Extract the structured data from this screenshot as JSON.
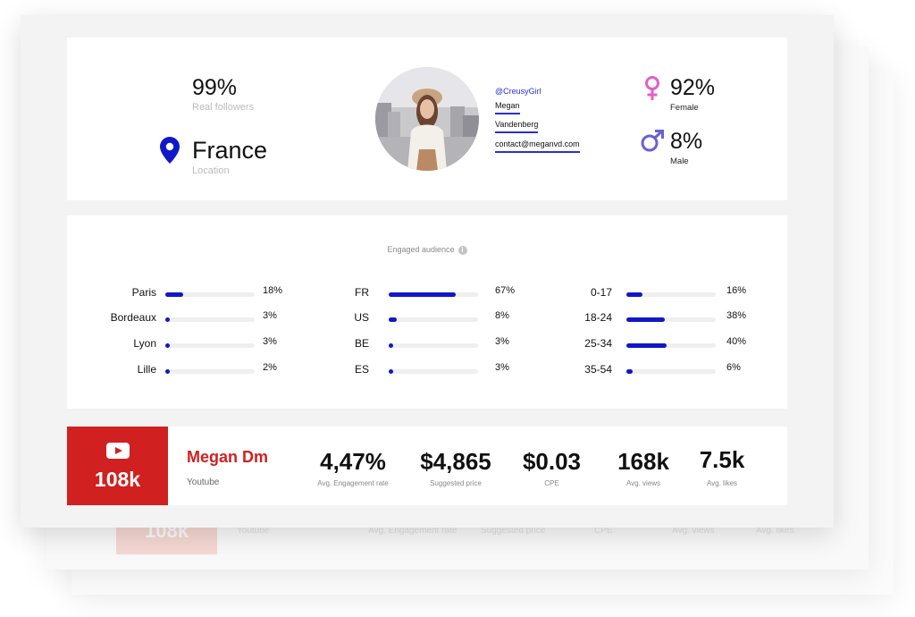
{
  "profile": {
    "real_followers_value": "99%",
    "real_followers_label": "Real followers",
    "location_value": "France",
    "location_label": "Location",
    "handle": "@CreusyGirl",
    "first_name": "Megan",
    "last_name": "Vandenberg",
    "email": "contact@meganvd.com",
    "female_value": "92%",
    "female_label": "Female",
    "male_value": "8%",
    "male_label": "Male",
    "colors": {
      "female": "#e060c8",
      "male": "#6a5fd6",
      "pin": "#1018c8",
      "accent": "#2a2fd6"
    }
  },
  "audience": {
    "title": "Engaged audience",
    "info_icon": "info-icon",
    "cities": [
      {
        "label": "Paris",
        "pct": "18%",
        "value": 18
      },
      {
        "label": "Bordeaux",
        "pct": "3%",
        "value": 3
      },
      {
        "label": "Lyon",
        "pct": "3%",
        "value": 3
      },
      {
        "label": "Lille",
        "pct": "2%",
        "value": 2
      }
    ],
    "countries": [
      {
        "label": "FR",
        "pct": "67%",
        "value": 67
      },
      {
        "label": "US",
        "pct": "8%",
        "value": 8
      },
      {
        "label": "BE",
        "pct": "3%",
        "value": 3
      },
      {
        "label": "ES",
        "pct": "3%",
        "value": 3
      }
    ],
    "ages": [
      {
        "label": "0-17",
        "pct": "16%",
        "value": 16
      },
      {
        "label": "18-24",
        "pct": "38%",
        "value": 38
      },
      {
        "label": "25-34",
        "pct": "40%",
        "value": 40
      },
      {
        "label": "35-54",
        "pct": "6%",
        "value": 6
      }
    ]
  },
  "channel": {
    "platform_icon": "youtube-icon",
    "followers": "108k",
    "name": "Megan Dm",
    "platform": "Youtube",
    "stats": [
      {
        "value": "4,47%",
        "label": "Avg. Engagement rate"
      },
      {
        "value": "$4,865",
        "label": "Suggested price"
      },
      {
        "value": "$0.03",
        "label": "CPE"
      },
      {
        "value": "168k",
        "label": "Avg. views"
      },
      {
        "value": "7.5k",
        "label": "Avg. likes"
      }
    ],
    "brand_color": "#d02020"
  }
}
